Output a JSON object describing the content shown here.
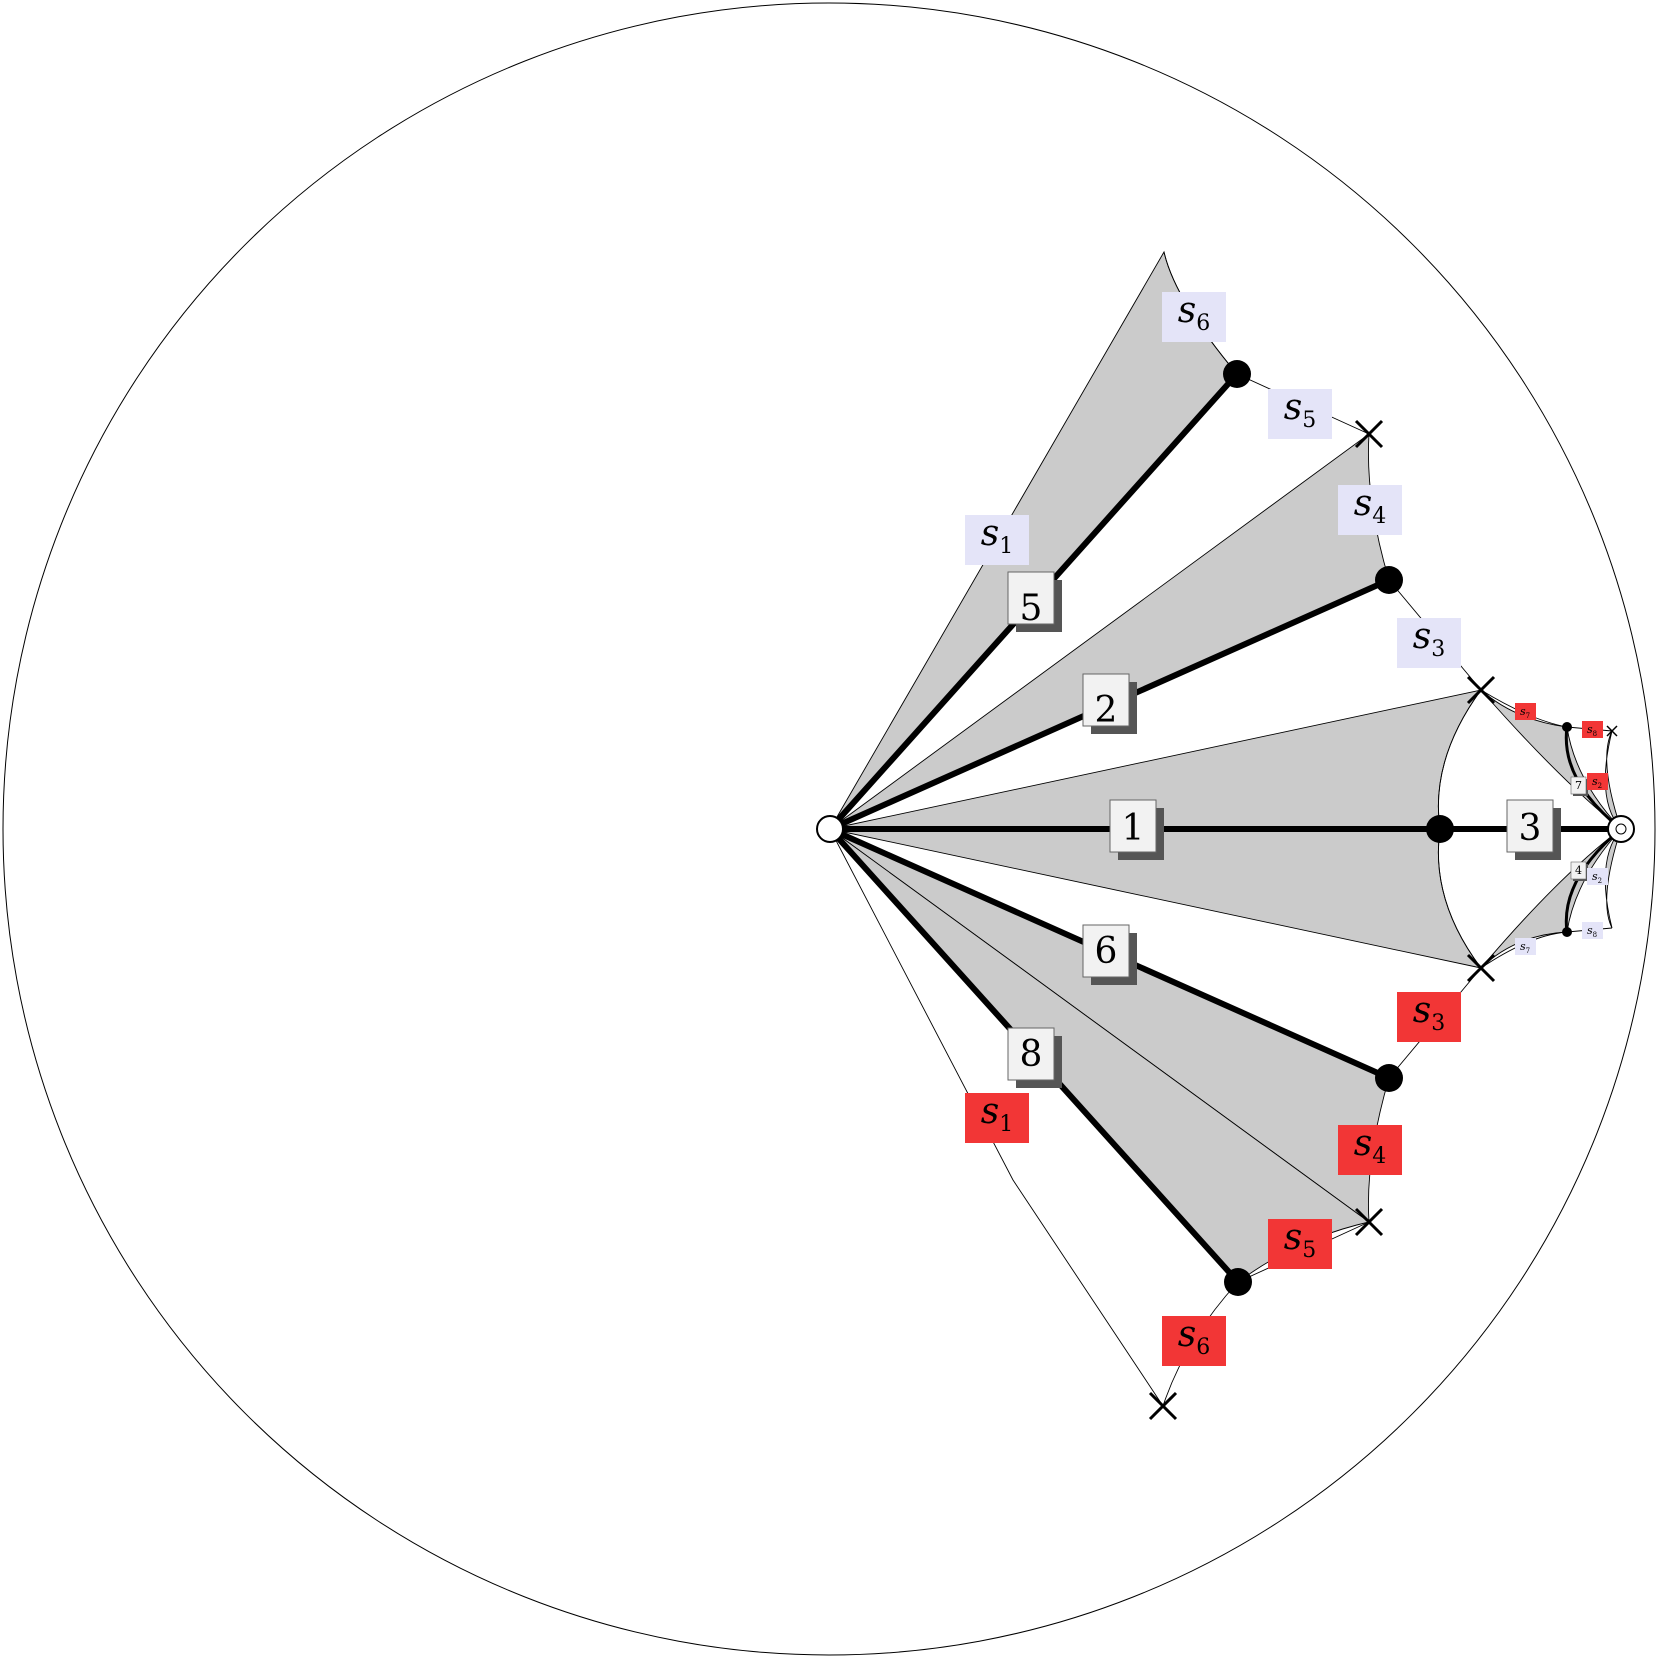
{
  "colors": {
    "background": "#ffffff",
    "outline": "#000000",
    "sector_fill": "#cbcbcb",
    "upper_label_bg": "#e4e4f8",
    "lower_label_bg": "#f23636",
    "number_box_bg": "#f2f2f2",
    "number_shadow": "#555555"
  },
  "edge_numbers": {
    "e1": "1",
    "e2": "2",
    "e3": "3",
    "e4": "4",
    "e5": "5",
    "e6": "6",
    "e7": "7",
    "e8": "8"
  },
  "upper_labels": {
    "s1": {
      "base": "s",
      "sub": "1"
    },
    "s3": {
      "base": "s",
      "sub": "3"
    },
    "s4": {
      "base": "s",
      "sub": "4"
    },
    "s5": {
      "base": "s",
      "sub": "5"
    },
    "s6": {
      "base": "s",
      "sub": "6"
    },
    "s2": {
      "base": "s",
      "sub": "2"
    },
    "s7": {
      "base": "s",
      "sub": "7"
    },
    "s8": {
      "base": "s",
      "sub": "8"
    }
  },
  "lower_labels": {
    "s1": {
      "base": "s",
      "sub": "1"
    },
    "s3": {
      "base": "s",
      "sub": "3"
    },
    "s4": {
      "base": "s",
      "sub": "4"
    },
    "s5": {
      "base": "s",
      "sub": "5"
    },
    "s6": {
      "base": "s",
      "sub": "6"
    },
    "s2": {
      "base": "s",
      "sub": "2"
    },
    "s7": {
      "base": "s",
      "sub": "7"
    },
    "s8": {
      "base": "s",
      "sub": "8"
    }
  }
}
